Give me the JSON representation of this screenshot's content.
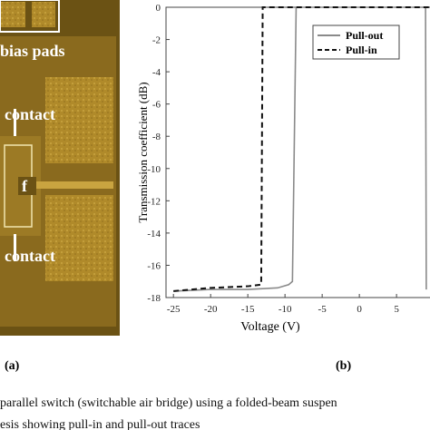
{
  "panel_a": {
    "labels": [
      "bias pads",
      "contact",
      "contact",
      "f"
    ],
    "tag": "(a)"
  },
  "chart_data": {
    "type": "line",
    "tag": "(b)",
    "x_label": "Voltage (V)",
    "y_label": "Transmission coefficient (dB)",
    "xlim": [
      -26,
      9.5
    ],
    "ylim": [
      -18,
      0
    ],
    "xticks": [
      -25,
      -20,
      -15,
      -10,
      -5,
      0,
      5
    ],
    "yticks": [
      0,
      -2,
      -4,
      -6,
      -8,
      -10,
      -12,
      -14,
      -16,
      -18
    ],
    "legend": "upper right",
    "series": [
      {
        "name": "Pull-out",
        "color": "#8a8a8a",
        "dash": false,
        "x": [
          -25,
          -20,
          -15,
          -11,
          -9.5,
          -9,
          -8.5,
          8.9,
          9.0
        ],
        "values": [
          -17.6,
          -17.5,
          -17.5,
          -17.4,
          -17.2,
          -17,
          0,
          0,
          -17.5
        ]
      },
      {
        "name": "Pull-in",
        "color": "#111111",
        "dash": true,
        "x": [
          -25,
          -20,
          -15,
          -13.2,
          -13,
          9.5
        ],
        "values": [
          -17.6,
          -17.4,
          -17.3,
          -17.2,
          0,
          0
        ]
      }
    ]
  },
  "caption": [
    "parallel switch (switchable air bridge) using a folded-beam suspen",
    "esis showing pull-in and pull-out traces"
  ]
}
